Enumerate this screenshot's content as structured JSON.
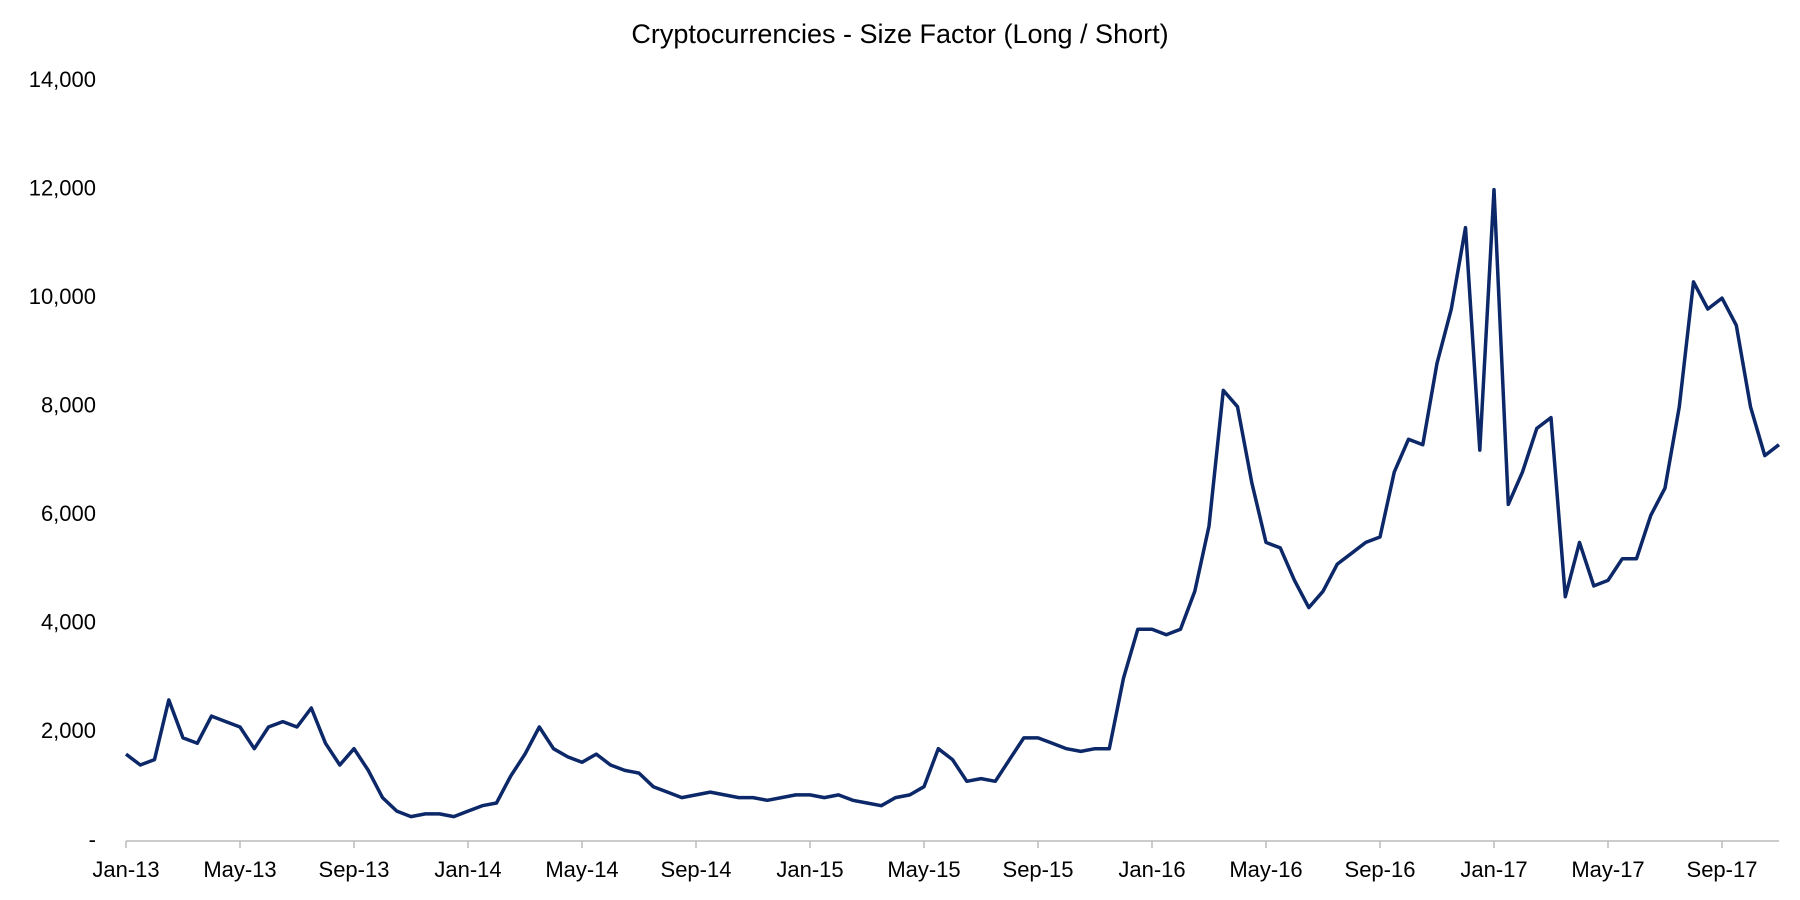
{
  "chart_data": {
    "type": "line",
    "title": "Cryptocurrencies - Size Factor (Long / Short)",
    "categories": [
      "Jan-13",
      null,
      null,
      null,
      null,
      null,
      null,
      null,
      "May-13",
      null,
      null,
      null,
      null,
      null,
      null,
      null,
      "Sep-13",
      null,
      null,
      null,
      null,
      null,
      null,
      null,
      "Jan-14",
      null,
      null,
      null,
      null,
      null,
      null,
      null,
      "May-14",
      null,
      null,
      null,
      null,
      null,
      null,
      null,
      "Sep-14",
      null,
      null,
      null,
      null,
      null,
      null,
      null,
      "Jan-15",
      null,
      null,
      null,
      null,
      null,
      null,
      null,
      "May-15",
      null,
      null,
      null,
      null,
      null,
      null,
      null,
      "Sep-15",
      null,
      null,
      null,
      null,
      null,
      null,
      null,
      "Jan-16",
      null,
      null,
      null,
      null,
      null,
      null,
      null,
      "May-16",
      null,
      null,
      null,
      null,
      null,
      null,
      null,
      "Sep-16",
      null,
      null,
      null,
      null,
      null,
      null,
      null,
      "Jan-17",
      null,
      null,
      null,
      null,
      null,
      null,
      null,
      "May-17",
      null,
      null,
      null,
      null,
      null,
      null,
      null,
      "Sep-17",
      null,
      null,
      null,
      null
    ],
    "series": [
      {
        "color": "#0c2868",
        "values": [
          1600,
          1400,
          1500,
          2600,
          1900,
          1800,
          2300,
          2200,
          2100,
          1700,
          2100,
          2200,
          2100,
          2450,
          1800,
          1400,
          1700,
          1300,
          800,
          550,
          450,
          500,
          500,
          450,
          550,
          650,
          700,
          1200,
          1600,
          2100,
          1700,
          1550,
          1450,
          1600,
          1400,
          1300,
          1250,
          1000,
          900,
          800,
          850,
          900,
          850,
          800,
          800,
          750,
          800,
          850,
          850,
          800,
          850,
          750,
          700,
          650,
          800,
          850,
          1000,
          1700,
          1500,
          1100,
          1150,
          1100,
          1500,
          1900,
          1900,
          1800,
          1700,
          1650,
          1700,
          1700,
          3000,
          3900,
          3900,
          3800,
          3900,
          4600,
          5800,
          8300,
          8000,
          6600,
          5500,
          5400,
          4800,
          4300,
          4600,
          5100,
          5300,
          5500,
          5600,
          6800,
          7400,
          7300,
          8800,
          9800,
          11300,
          7200,
          12000,
          6200,
          6800,
          7600,
          7800,
          4500,
          5500,
          4700,
          4800,
          5200,
          5200,
          6000,
          6500,
          8000,
          10300,
          9800,
          10000,
          9500,
          8000,
          7100,
          7300
        ]
      }
    ],
    "ylim": [
      0,
      14000
    ],
    "yticks": [
      {
        "value": 0,
        "label": "-"
      },
      {
        "value": 2000,
        "label": "2,000"
      },
      {
        "value": 4000,
        "label": "4,000"
      },
      {
        "value": 6000,
        "label": "6,000"
      },
      {
        "value": 8000,
        "label": "8,000"
      },
      {
        "value": 10000,
        "label": "10,000"
      },
      {
        "value": 12000,
        "label": "12,000"
      },
      {
        "value": 14000,
        "label": "14,000"
      }
    ],
    "grid": false
  }
}
